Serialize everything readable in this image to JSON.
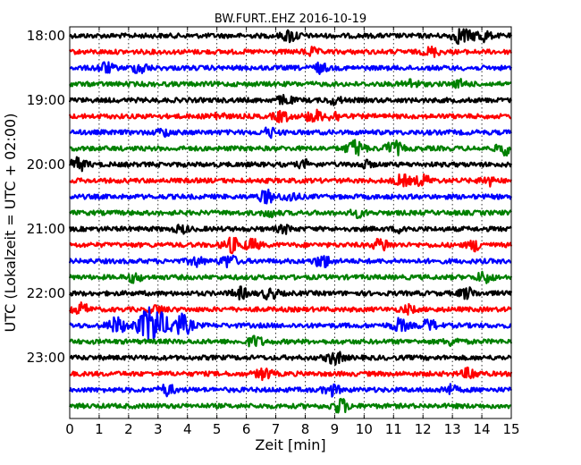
{
  "chart_data": {
    "type": "line",
    "title": "BW.FURT..EHZ 2016-10-19",
    "xlabel": "Zeit  [min]",
    "ylabel": "UTC (Lokalzeit = UTC + 02:00)",
    "xlim": [
      0,
      15
    ],
    "x_ticks": [
      "0",
      "1",
      "2",
      "3",
      "4",
      "5",
      "6",
      "7",
      "8",
      "9",
      "10",
      "11",
      "12",
      "13",
      "14",
      "15"
    ],
    "y_tick_labels": [
      "18:00",
      "19:00",
      "20:00",
      "21:00",
      "22:00",
      "23:00"
    ],
    "grid": "vertical dotted lines at each minute",
    "series_colors": [
      "#000000",
      "#ff0000",
      "#0000ff",
      "#008000"
    ],
    "rows": [
      {
        "start": "18:00",
        "color": "#000000",
        "events": [
          [
            7.5,
            0.35
          ],
          [
            13.3,
            0.45
          ],
          [
            14.0,
            0.35
          ]
        ]
      },
      {
        "start": "18:15",
        "color": "#ff0000",
        "events": [
          [
            8.2,
            0.2
          ],
          [
            12.3,
            0.25
          ]
        ]
      },
      {
        "start": "18:30",
        "color": "#0000ff",
        "events": [
          [
            1.2,
            0.3
          ],
          [
            2.4,
            0.3
          ],
          [
            8.5,
            0.25
          ]
        ]
      },
      {
        "start": "18:45",
        "color": "#008000",
        "events": [
          [
            11.6,
            0.25
          ],
          [
            13.3,
            0.2
          ]
        ]
      },
      {
        "start": "19:00",
        "color": "#000000",
        "events": [
          [
            7.3,
            0.25
          ],
          [
            9.0,
            0.2
          ]
        ]
      },
      {
        "start": "19:15",
        "color": "#ff0000",
        "events": [
          [
            5.0,
            0.2
          ],
          [
            7.2,
            0.3
          ],
          [
            8.3,
            0.35
          ],
          [
            9.0,
            0.25
          ]
        ]
      },
      {
        "start": "19:30",
        "color": "#0000ff",
        "events": [
          [
            3.2,
            0.2
          ],
          [
            6.8,
            0.25
          ]
        ]
      },
      {
        "start": "19:45",
        "color": "#008000",
        "events": [
          [
            9.7,
            0.45
          ],
          [
            11.0,
            0.4
          ],
          [
            14.8,
            0.35
          ]
        ]
      },
      {
        "start": "20:00",
        "color": "#000000",
        "events": [
          [
            0.3,
            0.35
          ],
          [
            8.0,
            0.2
          ],
          [
            10.0,
            0.2
          ]
        ]
      },
      {
        "start": "20:15",
        "color": "#ff0000",
        "events": [
          [
            11.3,
            0.3
          ],
          [
            12.0,
            0.3
          ],
          [
            14.2,
            0.25
          ]
        ]
      },
      {
        "start": "20:30",
        "color": "#0000ff",
        "events": [
          [
            6.7,
            0.35
          ],
          [
            7.5,
            0.25
          ]
        ]
      },
      {
        "start": "20:45",
        "color": "#008000",
        "events": [
          [
            6.8,
            0.2
          ],
          [
            9.8,
            0.2
          ]
        ]
      },
      {
        "start": "21:00",
        "color": "#000000",
        "events": [
          [
            3.8,
            0.2
          ],
          [
            7.3,
            0.2
          ],
          [
            11.3,
            0.2
          ]
        ]
      },
      {
        "start": "21:15",
        "color": "#ff0000",
        "events": [
          [
            5.5,
            0.4
          ],
          [
            6.2,
            0.3
          ],
          [
            10.6,
            0.35
          ],
          [
            13.8,
            0.3
          ]
        ]
      },
      {
        "start": "21:30",
        "color": "#0000ff",
        "events": [
          [
            4.3,
            0.25
          ],
          [
            5.4,
            0.35
          ],
          [
            8.6,
            0.35
          ]
        ]
      },
      {
        "start": "21:45",
        "color": "#008000",
        "events": [
          [
            2.2,
            0.25
          ],
          [
            14.1,
            0.3
          ]
        ]
      },
      {
        "start": "22:00",
        "color": "#000000",
        "events": [
          [
            5.8,
            0.3
          ],
          [
            6.8,
            0.3
          ],
          [
            13.5,
            0.3
          ]
        ]
      },
      {
        "start": "22:15",
        "color": "#ff0000",
        "events": [
          [
            0.4,
            0.3
          ],
          [
            3.0,
            0.25
          ],
          [
            11.5,
            0.2
          ]
        ]
      },
      {
        "start": "22:30",
        "color": "#0000ff",
        "events": [
          [
            1.6,
            0.45
          ],
          [
            2.8,
            1.1
          ],
          [
            3.8,
            0.6
          ],
          [
            11.2,
            0.35
          ],
          [
            12.2,
            0.3
          ]
        ]
      },
      {
        "start": "22:45",
        "color": "#008000",
        "events": [
          [
            6.3,
            0.3
          ],
          [
            13.0,
            0.2
          ]
        ]
      },
      {
        "start": "23:00",
        "color": "#000000",
        "events": [
          [
            9.0,
            0.35
          ]
        ]
      },
      {
        "start": "23:15",
        "color": "#ff0000",
        "events": [
          [
            6.6,
            0.3
          ],
          [
            13.6,
            0.3
          ]
        ]
      },
      {
        "start": "23:30",
        "color": "#0000ff",
        "events": [
          [
            3.3,
            0.3
          ],
          [
            8.9,
            0.3
          ],
          [
            12.9,
            0.25
          ]
        ]
      },
      {
        "start": "23:45",
        "color": "#008000",
        "events": [
          [
            9.2,
            0.4
          ]
        ]
      }
    ]
  }
}
